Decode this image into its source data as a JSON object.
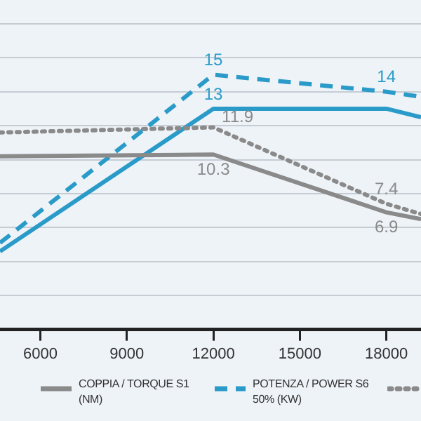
{
  "chart_data": {
    "type": "line",
    "xlim": [
      4600,
      19200
    ],
    "xticks": [
      6000,
      9000,
      12000,
      15000,
      18000
    ],
    "ylim": [
      0,
      19.4
    ],
    "yticks": [
      {
        "value": 0,
        "label": null
      },
      {
        "value": 2,
        "label": null
      },
      {
        "value": 4,
        "label": null
      },
      {
        "value": 6,
        "label": null
      },
      {
        "value": 8,
        "label": null
      },
      {
        "value": 10,
        "label": null
      },
      {
        "value": 12,
        "label": null
      },
      {
        "value": 14,
        "label": null
      },
      {
        "value": 16,
        "label": null
      },
      {
        "value": 18,
        "label": null
      }
    ],
    "tick_labels": "x",
    "grid": "y",
    "legend": "bottom",
    "marker": "none",
    "series": [
      {
        "name": "COPPIA / TORQUE\nS1 (NM)",
        "color": "#8a8a8a",
        "line_style": "solid",
        "x": [
          4600,
          12000,
          18000,
          19200
        ],
        "values": [
          10.2,
          10.3,
          6.9,
          6.5
        ],
        "value_labels": [
          null,
          "10.3",
          "6.9",
          null
        ]
      },
      {
        "name": "POTENZA / POWER\nS6 50% (KW)",
        "color": "#2a9bc9",
        "line_style": "dashed",
        "x": [
          4600,
          12000,
          18000,
          19200
        ],
        "values": [
          5.1,
          15,
          14,
          13.7
        ],
        "value_labels": [
          null,
          "15",
          "14",
          null
        ]
      },
      {
        "color": "#8a8a8a",
        "line_style": "dotted",
        "x": [
          4600,
          12000,
          18000,
          19200
        ],
        "values": [
          11.6,
          11.9,
          7.4,
          6.8
        ],
        "value_labels": [
          null,
          "11.9",
          "7.4",
          null
        ]
      },
      {
        "color": "#2a9bc9",
        "line_style": "solid",
        "x": [
          4600,
          12000,
          18000,
          19200
        ],
        "values": [
          4.6,
          13,
          13,
          12.5
        ],
        "value_labels": [
          null,
          "13",
          null,
          null
        ]
      }
    ]
  }
}
